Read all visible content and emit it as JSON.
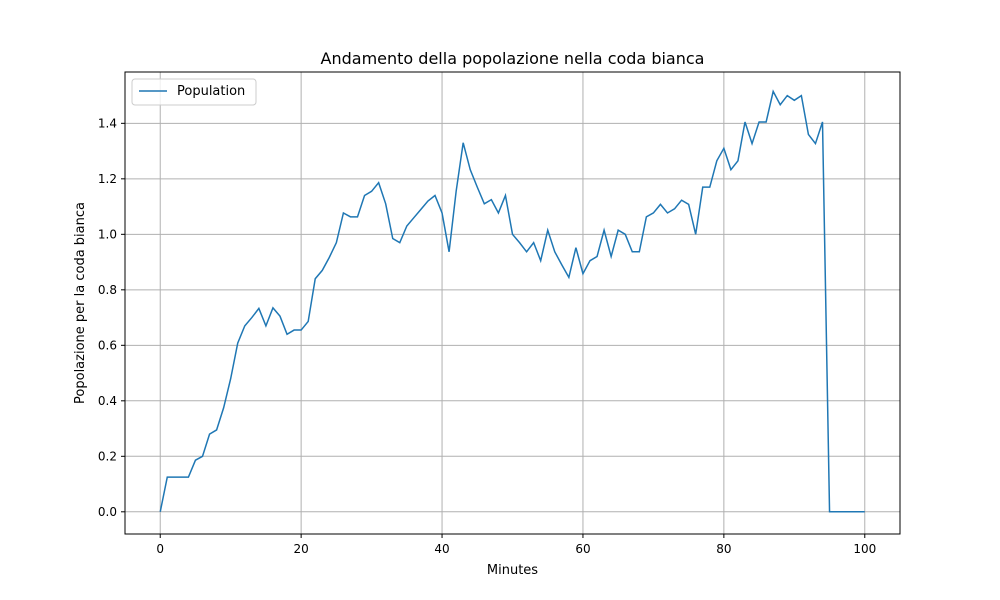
{
  "chart_data": {
    "type": "line",
    "title": "Andamento della popolazione nella coda bianca",
    "xlabel": "Minutes",
    "ylabel": "Popolazione per la coda bianca",
    "xlim": [
      -5,
      105
    ],
    "ylim": [
      -0.08,
      1.585
    ],
    "xticks": [
      0,
      20,
      40,
      60,
      80,
      100
    ],
    "yticks": [
      0.0,
      0.2,
      0.4,
      0.6,
      0.8,
      1.0,
      1.2,
      1.4
    ],
    "grid": true,
    "legend_position": "top-left",
    "series": [
      {
        "name": "Population",
        "color": "#1f77b4",
        "x": [
          0,
          1,
          2,
          3,
          4,
          5,
          6,
          7,
          8,
          9,
          10,
          11,
          12,
          13,
          14,
          15,
          16,
          17,
          18,
          19,
          20,
          21,
          22,
          23,
          24,
          25,
          26,
          27,
          28,
          29,
          30,
          31,
          32,
          33,
          34,
          35,
          36,
          37,
          38,
          39,
          40,
          41,
          42,
          43,
          44,
          45,
          46,
          47,
          48,
          49,
          50,
          51,
          52,
          53,
          54,
          55,
          56,
          57,
          58,
          59,
          60,
          61,
          62,
          63,
          64,
          65,
          66,
          67,
          68,
          69,
          70,
          71,
          72,
          73,
          74,
          75,
          76,
          77,
          78,
          79,
          80,
          81,
          82,
          83,
          84,
          85,
          86,
          87,
          88,
          89,
          90,
          91,
          92,
          93,
          94,
          95,
          96,
          97,
          98,
          99,
          100
        ],
        "values": [
          0.0,
          0.125,
          0.125,
          0.125,
          0.125,
          0.186,
          0.2,
          0.28,
          0.295,
          0.375,
          0.48,
          0.608,
          0.67,
          0.7,
          0.733,
          0.67,
          0.735,
          0.705,
          0.64,
          0.655,
          0.655,
          0.686,
          0.84,
          0.87,
          0.917,
          0.97,
          1.077,
          1.063,
          1.063,
          1.14,
          1.155,
          1.186,
          1.11,
          0.985,
          0.97,
          1.03,
          1.06,
          1.09,
          1.12,
          1.14,
          1.077,
          0.937,
          1.155,
          1.33,
          1.233,
          1.17,
          1.11,
          1.125,
          1.077,
          1.14,
          1.0,
          0.97,
          0.937,
          0.97,
          0.905,
          1.015,
          0.937,
          0.89,
          0.845,
          0.952,
          0.858,
          0.905,
          0.92,
          1.015,
          0.92,
          1.015,
          1.0,
          0.937,
          0.937,
          1.063,
          1.077,
          1.108,
          1.077,
          1.092,
          1.123,
          1.108,
          1.0,
          1.17,
          1.17,
          1.265,
          1.31,
          1.233,
          1.265,
          1.405,
          1.327,
          1.405,
          1.405,
          1.515,
          1.467,
          1.5,
          1.483,
          1.5,
          1.36,
          1.327,
          1.405,
          0.0,
          0.0,
          0.0,
          0.0,
          0.0,
          0.0
        ]
      }
    ]
  }
}
